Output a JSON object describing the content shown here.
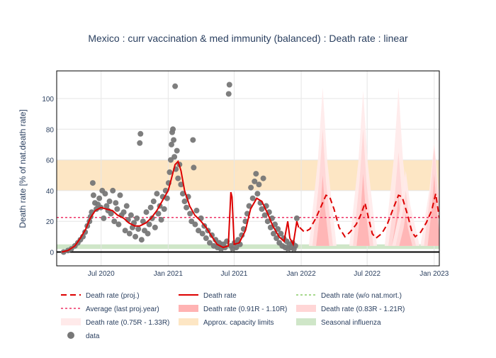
{
  "chart_data": {
    "type": "line",
    "title": "Mexico : curr vaccination & med immunity (balanced) : Death rate : linear",
    "ylabel": "Death rate [% of nat.death rate]",
    "xlabel": "",
    "x_range": [
      "2020-03-01",
      "2023-01-15"
    ],
    "y_range": [
      -9,
      118
    ],
    "y_ticks": [
      0,
      20,
      40,
      60,
      80,
      100
    ],
    "x_ticks": [
      {
        "date": "2020-07-01",
        "label": "Jul 2020"
      },
      {
        "date": "2021-01-01",
        "label": "Jan 2021"
      },
      {
        "date": "2021-07-01",
        "label": "Jul 2021"
      },
      {
        "date": "2022-01-01",
        "label": "Jan 2022"
      },
      {
        "date": "2022-07-01",
        "label": "Jul 2022"
      },
      {
        "date": "2023-01-01",
        "label": "Jan 2023"
      }
    ],
    "bands": {
      "capacity": {
        "y0": 40,
        "y1": 60,
        "color": "#fde6c4"
      },
      "influenza": {
        "y0": 2,
        "y1": 5,
        "color": "#cfe6c8"
      },
      "average_last_proj_year": 22.5
    },
    "death_rate": [
      [
        "2020-03-15",
        0
      ],
      [
        "2020-04-01",
        1
      ],
      [
        "2020-04-20",
        4
      ],
      [
        "2020-05-05",
        9
      ],
      [
        "2020-05-20",
        15
      ],
      [
        "2020-06-01",
        22
      ],
      [
        "2020-06-15",
        27
      ],
      [
        "2020-07-01",
        29
      ],
      [
        "2020-07-15",
        28
      ],
      [
        "2020-08-01",
        27
      ],
      [
        "2020-08-15",
        24
      ],
      [
        "2020-09-01",
        22
      ],
      [
        "2020-09-15",
        19
      ],
      [
        "2020-10-01",
        17
      ],
      [
        "2020-10-15",
        17
      ],
      [
        "2020-11-01",
        19
      ],
      [
        "2020-11-15",
        22
      ],
      [
        "2020-12-01",
        27
      ],
      [
        "2020-12-15",
        33
      ],
      [
        "2021-01-01",
        40
      ],
      [
        "2021-01-10",
        48
      ],
      [
        "2021-01-20",
        57
      ],
      [
        "2021-01-28",
        59
      ],
      [
        "2021-02-05",
        53
      ],
      [
        "2021-02-15",
        40
      ],
      [
        "2021-03-01",
        30
      ],
      [
        "2021-03-15",
        24
      ],
      [
        "2021-04-01",
        20
      ],
      [
        "2021-04-15",
        16
      ],
      [
        "2021-05-01",
        10
      ],
      [
        "2021-05-15",
        5
      ],
      [
        "2021-06-01",
        3
      ],
      [
        "2021-06-15",
        4
      ],
      [
        "2021-06-22",
        39
      ],
      [
        "2021-06-25",
        36
      ],
      [
        "2021-07-01",
        5
      ],
      [
        "2021-07-15",
        6
      ],
      [
        "2021-08-01",
        14
      ],
      [
        "2021-08-15",
        28
      ],
      [
        "2021-09-01",
        35
      ],
      [
        "2021-09-15",
        33
      ],
      [
        "2021-10-01",
        25
      ],
      [
        "2021-10-15",
        17
      ],
      [
        "2021-11-01",
        10
      ],
      [
        "2021-11-15",
        7
      ],
      [
        "2021-11-25",
        20
      ],
      [
        "2021-12-01",
        9
      ],
      [
        "2021-12-10",
        5
      ],
      [
        "2021-12-20",
        20
      ],
      [
        "2021-12-25",
        16
      ]
    ],
    "death_rate_proj": [
      [
        "2021-12-28",
        16
      ],
      [
        "2022-01-10",
        13
      ],
      [
        "2022-01-25",
        15
      ],
      [
        "2022-02-10",
        22
      ],
      [
        "2022-02-25",
        30
      ],
      [
        "2022-03-10",
        37
      ],
      [
        "2022-03-20",
        36
      ],
      [
        "2022-04-01",
        28
      ],
      [
        "2022-04-15",
        16
      ],
      [
        "2022-05-01",
        10
      ],
      [
        "2022-05-15",
        13
      ],
      [
        "2022-06-01",
        18
      ],
      [
        "2022-06-15",
        25
      ],
      [
        "2022-06-25",
        32
      ],
      [
        "2022-07-05",
        22
      ],
      [
        "2022-07-15",
        12
      ],
      [
        "2022-07-25",
        9
      ],
      [
        "2022-08-10",
        12
      ],
      [
        "2022-08-25",
        18
      ],
      [
        "2022-09-10",
        28
      ],
      [
        "2022-09-25",
        37
      ],
      [
        "2022-10-05",
        36
      ],
      [
        "2022-10-20",
        24
      ],
      [
        "2022-11-01",
        13
      ],
      [
        "2022-11-10",
        10
      ],
      [
        "2022-11-25",
        13
      ],
      [
        "2022-12-10",
        19
      ],
      [
        "2022-12-25",
        27
      ],
      [
        "2023-01-05",
        38
      ],
      [
        "2023-01-15",
        22
      ]
    ],
    "proj_peaks": [
      {
        "date": "2022-03-01",
        "band1": 50,
        "band2": 80,
        "band3": 107
      },
      {
        "date": "2022-06-20",
        "band1": 51,
        "band2": 80,
        "band3": 105
      },
      {
        "date": "2022-09-25",
        "band1": 37,
        "band2": 65,
        "band3": 107
      },
      {
        "date": "2022-10-15",
        "band1": 25,
        "band2": 40,
        "band3": 53
      },
      {
        "date": "2023-01-01",
        "band1": 51,
        "band2": 70,
        "band3": 71
      }
    ],
    "series_names": {
      "proj": "Death rate (proj.)",
      "death_rate": "Death rate",
      "wo_natmort": "Death rate (w/o nat.mort.)",
      "average": "Average (last proj.year)",
      "band1": "Death rate (0.91R - 1.10R)",
      "band2": "Death rate (0.83R - 1.21R)",
      "band3": "Death rate (0.75R - 1.33R)",
      "capacity": "Approx. capacity limits",
      "influenza": "Seasonal influenza",
      "data": "data"
    },
    "colors": {
      "proj": "#dd0000",
      "death_rate": "#dd0000",
      "wo_natmort": "#88cc66",
      "average": "#ee3366",
      "band1": "#ffb3b3",
      "band2": "#ffd6d6",
      "band3": "#ffeaea",
      "capacity": "#fde6c4",
      "influenza": "#cfe6c8",
      "data": "#777777"
    },
    "data_points": [
      [
        "2020-03-20",
        0
      ],
      [
        "2020-04-01",
        1
      ],
      [
        "2020-04-10",
        2
      ],
      [
        "2020-04-20",
        4
      ],
      [
        "2020-04-28",
        6
      ],
      [
        "2020-05-05",
        8
      ],
      [
        "2020-05-12",
        10
      ],
      [
        "2020-05-18",
        13
      ],
      [
        "2020-05-24",
        17
      ],
      [
        "2020-05-30",
        20
      ],
      [
        "2020-06-02",
        23
      ],
      [
        "2020-06-05",
        26
      ],
      [
        "2020-06-08",
        45
      ],
      [
        "2020-06-10",
        37
      ],
      [
        "2020-06-14",
        32
      ],
      [
        "2020-06-18",
        28
      ],
      [
        "2020-06-22",
        31
      ],
      [
        "2020-06-26",
        35
      ],
      [
        "2020-06-30",
        29
      ],
      [
        "2020-07-04",
        40
      ],
      [
        "2020-07-08",
        22
      ],
      [
        "2020-07-12",
        38
      ],
      [
        "2020-07-16",
        30
      ],
      [
        "2020-07-20",
        27
      ],
      [
        "2020-07-24",
        33
      ],
      [
        "2020-07-28",
        25
      ],
      [
        "2020-08-02",
        40
      ],
      [
        "2020-08-06",
        20
      ],
      [
        "2020-08-10",
        32
      ],
      [
        "2020-08-14",
        28
      ],
      [
        "2020-08-18",
        18
      ],
      [
        "2020-08-22",
        37
      ],
      [
        "2020-08-26",
        24
      ],
      [
        "2020-09-01",
        26
      ],
      [
        "2020-09-05",
        14
      ],
      [
        "2020-09-09",
        30
      ],
      [
        "2020-09-13",
        21
      ],
      [
        "2020-09-17",
        12
      ],
      [
        "2020-09-21",
        24
      ],
      [
        "2020-09-25",
        16
      ],
      [
        "2020-09-29",
        19
      ],
      [
        "2020-10-03",
        10
      ],
      [
        "2020-10-07",
        22
      ],
      [
        "2020-10-11",
        15
      ],
      [
        "2020-10-15",
        71
      ],
      [
        "2020-10-17",
        77
      ],
      [
        "2020-10-20",
        8
      ],
      [
        "2020-10-24",
        20
      ],
      [
        "2020-10-28",
        14
      ],
      [
        "2020-11-02",
        26
      ],
      [
        "2020-11-06",
        12
      ],
      [
        "2020-11-10",
        18
      ],
      [
        "2020-11-14",
        29
      ],
      [
        "2020-11-18",
        22
      ],
      [
        "2020-11-22",
        33
      ],
      [
        "2020-11-26",
        16
      ],
      [
        "2020-12-01",
        38
      ],
      [
        "2020-12-05",
        25
      ],
      [
        "2020-12-09",
        30
      ],
      [
        "2020-12-13",
        21
      ],
      [
        "2020-12-17",
        36
      ],
      [
        "2020-12-21",
        28
      ],
      [
        "2020-12-25",
        40
      ],
      [
        "2020-12-29",
        35
      ],
      [
        "2021-01-02",
        45
      ],
      [
        "2021-01-05",
        52
      ],
      [
        "2021-01-08",
        60
      ],
      [
        "2021-01-10",
        70
      ],
      [
        "2021-01-12",
        78
      ],
      [
        "2021-01-14",
        80
      ],
      [
        "2021-01-16",
        73
      ],
      [
        "2021-01-18",
        62
      ],
      [
        "2021-01-20",
        108
      ],
      [
        "2021-01-22",
        54
      ],
      [
        "2021-01-25",
        66
      ],
      [
        "2021-01-28",
        48
      ],
      [
        "2021-02-01",
        57
      ],
      [
        "2021-02-05",
        44
      ],
      [
        "2021-02-10",
        38
      ],
      [
        "2021-02-15",
        33
      ],
      [
        "2021-02-20",
        29
      ],
      [
        "2021-02-25",
        36
      ],
      [
        "2021-03-02",
        25
      ],
      [
        "2021-03-06",
        20
      ],
      [
        "2021-03-10",
        73
      ],
      [
        "2021-03-12",
        55
      ],
      [
        "2021-03-16",
        18
      ],
      [
        "2021-03-20",
        27
      ],
      [
        "2021-03-25",
        14
      ],
      [
        "2021-04-01",
        22
      ],
      [
        "2021-04-05",
        12
      ],
      [
        "2021-04-10",
        17
      ],
      [
        "2021-04-15",
        9
      ],
      [
        "2021-04-20",
        14
      ],
      [
        "2021-04-25",
        6
      ],
      [
        "2021-05-01",
        11
      ],
      [
        "2021-05-06",
        4
      ],
      [
        "2021-05-11",
        8
      ],
      [
        "2021-05-16",
        3
      ],
      [
        "2021-05-21",
        6
      ],
      [
        "2021-05-26",
        2
      ],
      [
        "2021-06-01",
        5
      ],
      [
        "2021-06-06",
        3
      ],
      [
        "2021-06-11",
        7
      ],
      [
        "2021-06-16",
        103
      ],
      [
        "2021-06-18",
        109
      ],
      [
        "2021-06-22",
        4
      ],
      [
        "2021-06-27",
        2
      ],
      [
        "2021-07-02",
        6
      ],
      [
        "2021-07-07",
        3
      ],
      [
        "2021-07-12",
        8
      ],
      [
        "2021-07-17",
        5
      ],
      [
        "2021-07-22",
        11
      ],
      [
        "2021-07-27",
        15
      ],
      [
        "2021-08-01",
        20
      ],
      [
        "2021-08-06",
        25
      ],
      [
        "2021-08-11",
        30
      ],
      [
        "2021-08-16",
        42
      ],
      [
        "2021-08-21",
        35
      ],
      [
        "2021-08-26",
        46
      ],
      [
        "2021-08-30",
        51
      ],
      [
        "2021-09-03",
        38
      ],
      [
        "2021-09-07",
        44
      ],
      [
        "2021-09-11",
        32
      ],
      [
        "2021-09-15",
        28
      ],
      [
        "2021-09-19",
        48
      ],
      [
        "2021-09-23",
        24
      ],
      [
        "2021-09-27",
        30
      ],
      [
        "2021-10-01",
        20
      ],
      [
        "2021-10-05",
        26
      ],
      [
        "2021-10-09",
        16
      ],
      [
        "2021-10-13",
        22
      ],
      [
        "2021-10-17",
        12
      ],
      [
        "2021-10-21",
        18
      ],
      [
        "2021-10-25",
        9
      ],
      [
        "2021-10-29",
        15
      ],
      [
        "2021-11-02",
        6
      ],
      [
        "2021-11-06",
        12
      ],
      [
        "2021-11-10",
        4
      ],
      [
        "2021-11-14",
        9
      ],
      [
        "2021-11-18",
        3
      ],
      [
        "2021-11-22",
        7
      ],
      [
        "2021-11-26",
        2
      ],
      [
        "2021-11-30",
        5
      ],
      [
        "2021-12-04",
        3
      ],
      [
        "2021-12-08",
        6
      ],
      [
        "2021-12-12",
        2
      ],
      [
        "2021-12-16",
        4
      ],
      [
        "2021-12-20",
        22
      ]
    ]
  }
}
